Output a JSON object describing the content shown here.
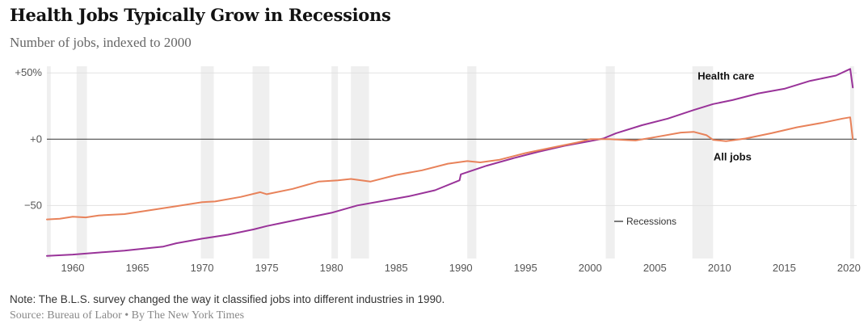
{
  "chart_data": {
    "type": "line",
    "title": "Health Jobs Typically Grow in Recessions",
    "subtitle": "Number of jobs, indexed to 2000",
    "xlim": [
      1958,
      2020.6
    ],
    "ylim": [
      -90,
      55
    ],
    "y_ticks": [
      {
        "value": 50,
        "label": "+50%"
      },
      {
        "value": 0,
        "label": "+0"
      },
      {
        "value": -50,
        "label": "−50"
      }
    ],
    "x_ticks": [
      {
        "value": 1960,
        "label": "1960"
      },
      {
        "value": 1965,
        "label": "1965"
      },
      {
        "value": 1970,
        "label": "1970"
      },
      {
        "value": 1975,
        "label": "1975"
      },
      {
        "value": 1980,
        "label": "1980"
      },
      {
        "value": 1985,
        "label": "1985"
      },
      {
        "value": 1990,
        "label": "1990"
      },
      {
        "value": 1995,
        "label": "1995"
      },
      {
        "value": 2000,
        "label": "2000"
      },
      {
        "value": 2005,
        "label": "2005"
      },
      {
        "value": 2010,
        "label": "2010"
      },
      {
        "value": 2015,
        "label": "2015"
      },
      {
        "value": 2020,
        "label": "2020"
      }
    ],
    "recessions": [
      [
        1958.0,
        1958.3
      ],
      [
        1960.3,
        1961.1
      ],
      [
        1969.9,
        1970.9
      ],
      [
        1973.9,
        1975.2
      ],
      [
        1980.0,
        1980.5
      ],
      [
        1981.5,
        1982.9
      ],
      [
        1990.5,
        1991.2
      ],
      [
        2001.2,
        2001.9
      ],
      [
        2007.9,
        2009.5
      ],
      [
        2020.1,
        2020.4
      ]
    ],
    "legend": {
      "label": "Recessions"
    },
    "series": [
      {
        "name": "Health care",
        "color": "#993399",
        "points": [
          [
            1958.0,
            -88.0
          ],
          [
            1960.0,
            -87.0
          ],
          [
            1962.0,
            -85.5
          ],
          [
            1964.0,
            -84.0
          ],
          [
            1966.0,
            -82.0
          ],
          [
            1967.0,
            -81.0
          ],
          [
            1968.0,
            -78.5
          ],
          [
            1970.0,
            -75.0
          ],
          [
            1972.0,
            -72.0
          ],
          [
            1974.0,
            -68.0
          ],
          [
            1975.0,
            -65.5
          ],
          [
            1976.0,
            -63.5
          ],
          [
            1978.0,
            -59.5
          ],
          [
            1980.0,
            -55.5
          ],
          [
            1982.0,
            -50.0
          ],
          [
            1984.0,
            -46.5
          ],
          [
            1986.0,
            -43.0
          ],
          [
            1988.0,
            -38.5
          ],
          [
            1989.9,
            -31.0
          ],
          [
            1990.0,
            -26.5
          ],
          [
            1992.0,
            -20.0
          ],
          [
            1994.0,
            -14.5
          ],
          [
            1996.0,
            -9.5
          ],
          [
            1998.0,
            -5.0
          ],
          [
            2000.0,
            -1.5
          ],
          [
            2001.0,
            0.5
          ],
          [
            2002.0,
            4.5
          ],
          [
            2004.0,
            10.5
          ],
          [
            2006.0,
            15.5
          ],
          [
            2008.0,
            22.0
          ],
          [
            2009.5,
            26.5
          ],
          [
            2011.0,
            29.5
          ],
          [
            2013.0,
            34.5
          ],
          [
            2015.0,
            38.0
          ],
          [
            2017.0,
            44.0
          ],
          [
            2019.0,
            48.0
          ],
          [
            2020.1,
            53.0
          ],
          [
            2020.3,
            39.0
          ]
        ]
      },
      {
        "name": "All jobs",
        "color": "#e8825a",
        "points": [
          [
            1958.0,
            -60.5
          ],
          [
            1959.0,
            -60.0
          ],
          [
            1960.0,
            -58.5
          ],
          [
            1961.0,
            -59.0
          ],
          [
            1962.0,
            -57.5
          ],
          [
            1964.0,
            -56.5
          ],
          [
            1966.0,
            -53.5
          ],
          [
            1968.0,
            -50.5
          ],
          [
            1970.0,
            -47.5
          ],
          [
            1971.0,
            -47.0
          ],
          [
            1973.0,
            -43.5
          ],
          [
            1974.5,
            -40.0
          ],
          [
            1975.0,
            -41.5
          ],
          [
            1977.0,
            -37.5
          ],
          [
            1979.0,
            -32.0
          ],
          [
            1980.5,
            -31.0
          ],
          [
            1981.5,
            -30.0
          ],
          [
            1983.0,
            -32.0
          ],
          [
            1985.0,
            -27.0
          ],
          [
            1987.0,
            -23.5
          ],
          [
            1989.0,
            -18.5
          ],
          [
            1990.5,
            -16.5
          ],
          [
            1991.5,
            -17.5
          ],
          [
            1993.0,
            -15.5
          ],
          [
            1995.0,
            -10.5
          ],
          [
            1997.0,
            -6.5
          ],
          [
            1999.0,
            -2.5
          ],
          [
            2000.0,
            0.0
          ],
          [
            2001.5,
            0.0
          ],
          [
            2002.5,
            -0.5
          ],
          [
            2003.5,
            -1.0
          ],
          [
            2005.0,
            1.5
          ],
          [
            2007.0,
            5.0
          ],
          [
            2008.0,
            5.5
          ],
          [
            2009.0,
            3.0
          ],
          [
            2009.5,
            -0.5
          ],
          [
            2010.5,
            -1.5
          ],
          [
            2012.0,
            0.5
          ],
          [
            2014.0,
            4.5
          ],
          [
            2016.0,
            9.0
          ],
          [
            2018.0,
            12.5
          ],
          [
            2019.5,
            15.5
          ],
          [
            2020.1,
            16.5
          ],
          [
            2020.3,
            0.0
          ]
        ]
      }
    ],
    "annotations": [
      {
        "text": "Health care",
        "x": 2010.5,
        "y": 45
      },
      {
        "text": "All jobs",
        "x": 2011.0,
        "y": -16
      }
    ]
  },
  "note": "Note: The B.L.S. survey changed the way it classified jobs into different industries in 1990.",
  "source": "Source: Bureau of Labor • By The New York Times"
}
